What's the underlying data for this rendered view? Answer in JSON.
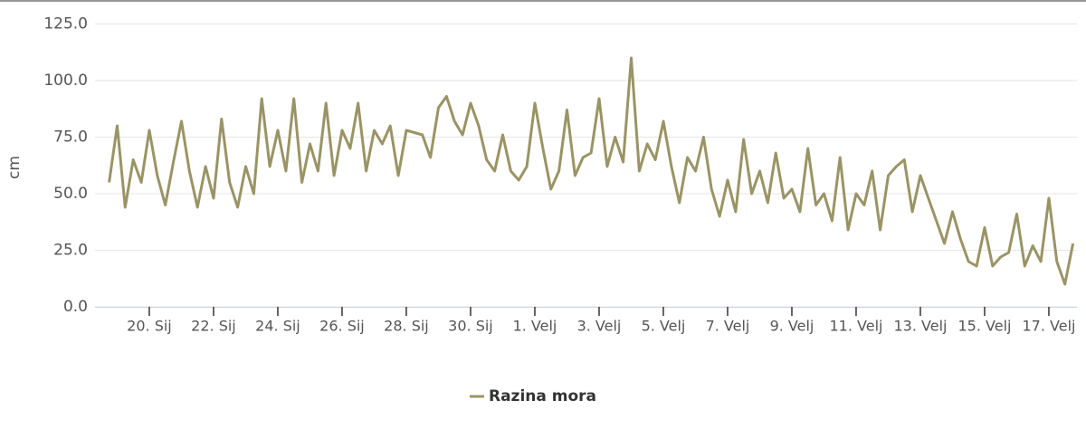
{
  "chart_data": {
    "type": "line",
    "y_label": "cm",
    "categories": [
      null,
      null,
      null,
      null,
      null,
      "20. Sij",
      null,
      null,
      null,
      null,
      null,
      null,
      null,
      "22. Sij",
      null,
      null,
      null,
      null,
      null,
      null,
      null,
      "24. Sij",
      null,
      null,
      null,
      null,
      null,
      null,
      null,
      "26. Sij",
      null,
      null,
      null,
      null,
      null,
      null,
      null,
      "28. Sij",
      null,
      null,
      null,
      null,
      null,
      null,
      null,
      "30. Sij",
      null,
      null,
      null,
      null,
      null,
      null,
      null,
      "1. Velj",
      null,
      null,
      null,
      null,
      null,
      null,
      null,
      "3. Velj",
      null,
      null,
      null,
      null,
      null,
      null,
      null,
      "5. Velj",
      null,
      null,
      null,
      null,
      null,
      null,
      null,
      "7. Velj",
      null,
      null,
      null,
      null,
      null,
      null,
      null,
      "9. Velj",
      null,
      null,
      null,
      null,
      null,
      null,
      null,
      "11. Velj",
      null,
      null,
      null,
      null,
      null,
      null,
      null,
      "13. Velj",
      null,
      null,
      null,
      null,
      null,
      null,
      null,
      "15. Velj",
      null,
      null,
      null,
      null,
      null,
      null,
      null,
      "17. Velj",
      null,
      null,
      null
    ],
    "series": [
      {
        "name": "Razina mora",
        "color": "#9a9465",
        "values": [
          55,
          80,
          44,
          65,
          55,
          78,
          58,
          45,
          64,
          82,
          60,
          44,
          62,
          48,
          83,
          55,
          44,
          62,
          50,
          92,
          62,
          78,
          60,
          92,
          55,
          72,
          60,
          90,
          58,
          78,
          70,
          90,
          60,
          78,
          72,
          80,
          58,
          78,
          77,
          76,
          66,
          88,
          93,
          82,
          76,
          90,
          80,
          65,
          60,
          76,
          60,
          56,
          62,
          90,
          70,
          52,
          60,
          87,
          58,
          66,
          68,
          92,
          62,
          75,
          64,
          110,
          60,
          72,
          65,
          82,
          62,
          46,
          66,
          60,
          75,
          52,
          40,
          56,
          42,
          74,
          50,
          60,
          46,
          68,
          48,
          52,
          42,
          70,
          45,
          50,
          38,
          66,
          34,
          50,
          45,
          60,
          34,
          58,
          62,
          65,
          42,
          58,
          48,
          38,
          28,
          42,
          30,
          20,
          18,
          35,
          18,
          22,
          24,
          41,
          18,
          27,
          20,
          48,
          20,
          10,
          28
        ]
      }
    ],
    "ylim": [
      0,
      125
    ],
    "yticks": [
      {
        "value": 0,
        "label": "0.0"
      },
      {
        "value": 25,
        "label": "25.0"
      },
      {
        "value": 50,
        "label": "50.0"
      },
      {
        "value": 75,
        "label": "75.0"
      },
      {
        "value": 100,
        "label": "100.0"
      },
      {
        "value": 125,
        "label": "125.0"
      }
    ],
    "grid": true
  }
}
